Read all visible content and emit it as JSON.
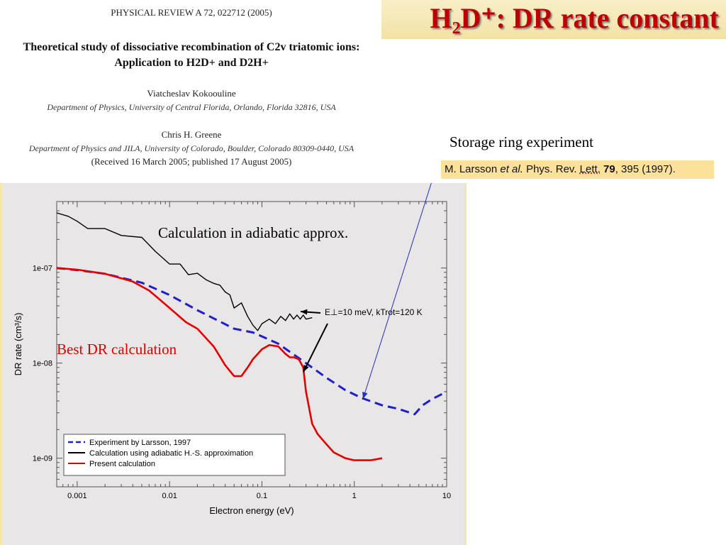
{
  "slide": {
    "title": "H₂D⁺: DR rate constant",
    "storage_label": "Storage ring experiment",
    "citation": {
      "authors": "M. Larsson",
      "etal": "et al.",
      "journal": "Phys. Rev.",
      "lett": "Lett.",
      "volume": "79",
      "rest": ", 395 (1997)."
    },
    "annotation_adiabatic": "Calculation in adiabatic approx.",
    "annotation_best": "Best DR calculation"
  },
  "paper": {
    "journal_line": "PHYSICAL REVIEW A 72, 022712 (2005)",
    "title_line1": "Theoretical study of dissociative recombination of C2v triatomic ions:",
    "title_line2": "Application to H2D+ and D2H+",
    "author1": "Viatcheslav Kokoouline",
    "affiliation1": "Department of Physics, University of Central Florida, Orlando, Florida 32816, USA",
    "author2": "Chris H. Greene",
    "affiliation2": "Department of Physics and JILA, University of Colorado, Boulder, Colorado 80309-0440, USA",
    "received": "(Received 16 March 2005; published 17 August 2005)"
  },
  "chart_data": {
    "type": "line",
    "xlabel": "Electron energy (eV)",
    "ylabel": "DR rate (cm³/s)",
    "x_scale": "log",
    "y_scale": "log",
    "xlim": [
      0.0006,
      10
    ],
    "ylim": [
      5e-10,
      5e-07
    ],
    "x_ticks": [
      {
        "value": 0.001,
        "label": "0.001"
      },
      {
        "value": 0.01,
        "label": "0.01"
      },
      {
        "value": 0.1,
        "label": "0.1"
      },
      {
        "value": 1,
        "label": "1"
      },
      {
        "value": 10,
        "label": "10"
      }
    ],
    "y_ticks": [
      {
        "value": 1e-07,
        "label": "1e-07"
      },
      {
        "value": 1e-08,
        "label": "1e-08"
      },
      {
        "value": 1e-09,
        "label": "1e-09"
      }
    ],
    "annotation": "E⊥=10 meV, kTrot=120 K",
    "legend_position": "bottom-left",
    "series": [
      {
        "name": "Experiment by Larsson, 1997",
        "color": "#1f1fd0",
        "style": "dashed",
        "x": [
          0.0006,
          0.001,
          0.002,
          0.005,
          0.01,
          0.02,
          0.05,
          0.08,
          0.15,
          0.3,
          0.5,
          0.8,
          1.2,
          2,
          3,
          4.5,
          5.5,
          7,
          10
        ],
        "y": [
          1e-07,
          9.5e-08,
          8.7e-08,
          7e-08,
          5.2e-08,
          3.6e-08,
          2.3e-08,
          2.1e-08,
          1.6e-08,
          1e-08,
          7e-09,
          5.2e-09,
          4.3e-09,
          3.6e-09,
          3.3e-09,
          2.9e-09,
          3.6e-09,
          4.2e-09,
          5e-09
        ]
      },
      {
        "name": "Calculation using adiabatic H.-S. approximation",
        "color": "#000000",
        "style": "solid",
        "x": [
          0.0006,
          0.0008,
          0.001,
          0.0013,
          0.002,
          0.003,
          0.005,
          0.007,
          0.01,
          0.013,
          0.016,
          0.02,
          0.025,
          0.03,
          0.035,
          0.04,
          0.045,
          0.05,
          0.06,
          0.07,
          0.08,
          0.09,
          0.1,
          0.12,
          0.14,
          0.16,
          0.18,
          0.2,
          0.22,
          0.24,
          0.26,
          0.28,
          0.3,
          0.35
        ],
        "y": [
          3.8e-07,
          3.5e-07,
          3.1e-07,
          2.6e-07,
          2.6e-07,
          2.2e-07,
          2.1e-07,
          1.5e-07,
          1.1e-07,
          1.1e-07,
          8.5e-08,
          8.8e-08,
          7.5e-08,
          6.9e-08,
          6.6e-08,
          5.6e-08,
          5.2e-08,
          3.8e-08,
          4.3e-08,
          3.1e-08,
          2.5e-08,
          2.2e-08,
          2.6e-08,
          2.9e-08,
          2.6e-08,
          3.1e-08,
          2.8e-08,
          3.3e-08,
          2.9e-08,
          3.2e-08,
          2.9e-08,
          3.2e-08,
          2.9e-08,
          3e-08
        ]
      },
      {
        "name": "Present calculation",
        "color": "#e80000",
        "style": "solid",
        "x": [
          0.0006,
          0.001,
          0.002,
          0.004,
          0.006,
          0.01,
          0.015,
          0.02,
          0.03,
          0.04,
          0.05,
          0.06,
          0.07,
          0.08,
          0.1,
          0.12,
          0.15,
          0.18,
          0.2,
          0.22,
          0.25,
          0.28,
          0.3,
          0.35,
          0.4,
          0.5,
          0.6,
          0.8,
          1,
          1.5,
          2
        ],
        "y": [
          1e-07,
          9.6e-08,
          8.7e-08,
          7.2e-08,
          5.8e-08,
          3.8e-08,
          2.7e-08,
          2.3e-08,
          1.5e-08,
          9.5e-09,
          7.3e-09,
          7.3e-09,
          9e-09,
          1.1e-08,
          1.4e-08,
          1.55e-08,
          1.5e-08,
          1.25e-08,
          1.15e-08,
          1.15e-08,
          1.1e-08,
          9e-09,
          5e-09,
          2.3e-09,
          1.8e-09,
          1.4e-09,
          1.15e-09,
          1e-09,
          9.5e-10,
          9.5e-10,
          1e-09
        ]
      }
    ]
  }
}
